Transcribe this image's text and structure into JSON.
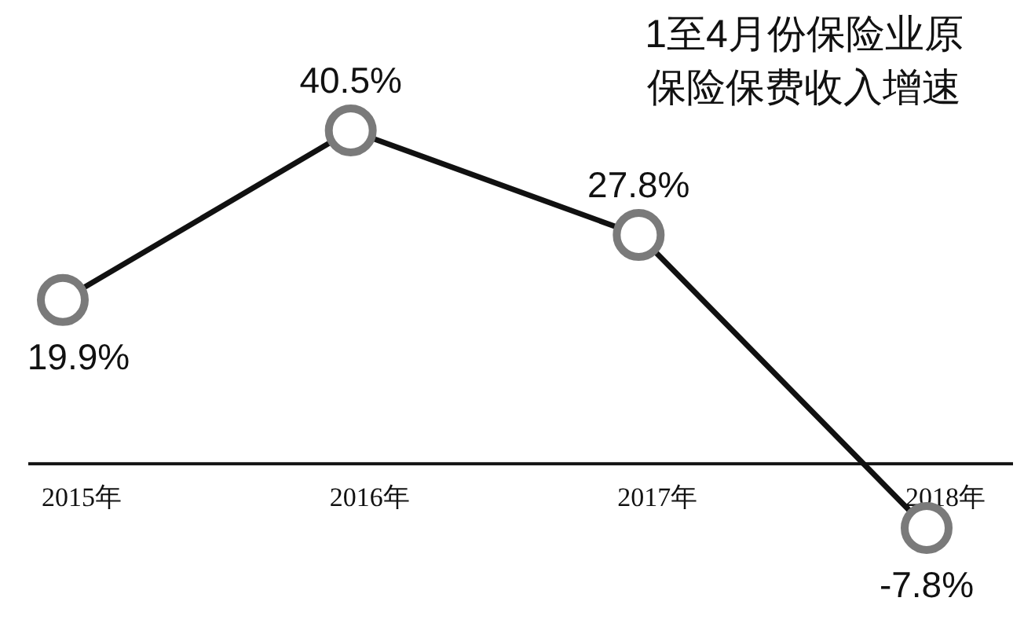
{
  "chart_data": {
    "type": "line",
    "title": "1至4月份保险业原保险保费收入增速",
    "categories": [
      "2015年",
      "2016年",
      "2017年",
      "2018年"
    ],
    "series": [
      {
        "color": "#111111",
        "values": [
          19.9,
          40.5,
          27.8,
          -7.8
        ],
        "value_labels": [
          "19.9%",
          "40.5%",
          "27.8%",
          "-7.8%"
        ]
      }
    ],
    "marker": "circle"
  }
}
